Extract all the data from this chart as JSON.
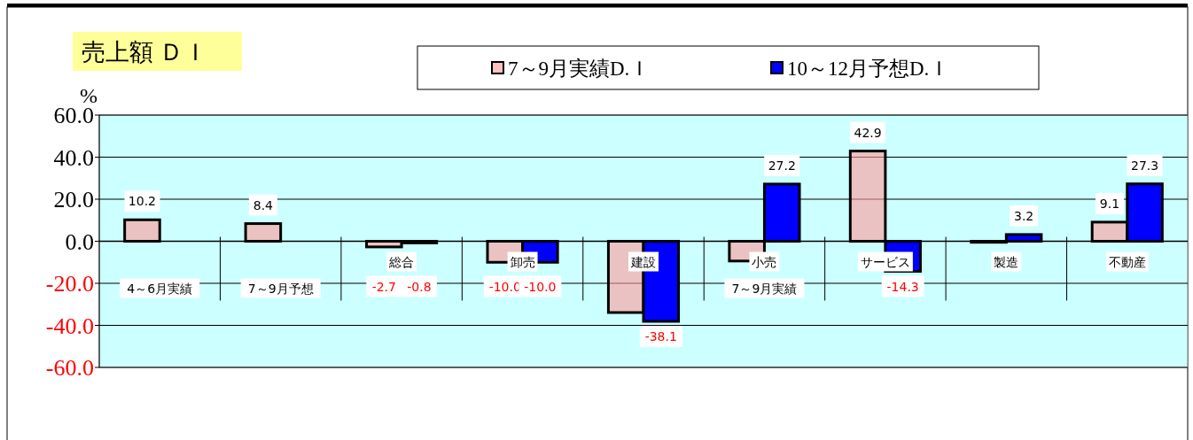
{
  "chart_data": {
    "type": "bar",
    "title": "売上額 ＤＩ",
    "ylabel": "%",
    "categories": [
      "4～6月実績",
      "7～9月予想",
      "総合",
      "卸売",
      "建設",
      "小売",
      "サービス",
      "製造",
      "不動産"
    ],
    "series": [
      {
        "name": "7～9月実績D.Ｉ",
        "color": "#ff9999",
        "values": [
          10.2,
          8.4,
          -2.7,
          -10.0,
          -33.9,
          -9.4,
          42.9,
          -0.5,
          9.1
        ],
        "value_labels": [
          "10.2",
          "8.4",
          "-2.7",
          "-10.0",
          null,
          null,
          "42.9",
          null,
          "9.1"
        ]
      },
      {
        "name": "10～12月予想D.Ｉ",
        "color": "#0000ff",
        "values": [
          null,
          null,
          -0.8,
          -10.0,
          -38.1,
          27.2,
          -14.3,
          3.2,
          27.3
        ],
        "value_labels": [
          null,
          null,
          "-0.8",
          "-10.0",
          "-38.1",
          "27.2",
          "-14.3",
          "3.2",
          "27.3"
        ]
      }
    ],
    "ylim": [
      -60,
      60
    ],
    "yticks": [
      {
        "value": 60,
        "label": "60.0"
      },
      {
        "value": 40,
        "label": "40.0"
      },
      {
        "value": 20,
        "label": "20.0"
      },
      {
        "value": 0,
        "label": "0.0"
      },
      {
        "value": -20,
        "label": "-20.0"
      },
      {
        "value": -40,
        "label": "-40.0"
      },
      {
        "value": -60,
        "label": "-60.0"
      }
    ],
    "grid": "y",
    "legend": "top",
    "annotations": [
      "7～9月実績"
    ]
  }
}
